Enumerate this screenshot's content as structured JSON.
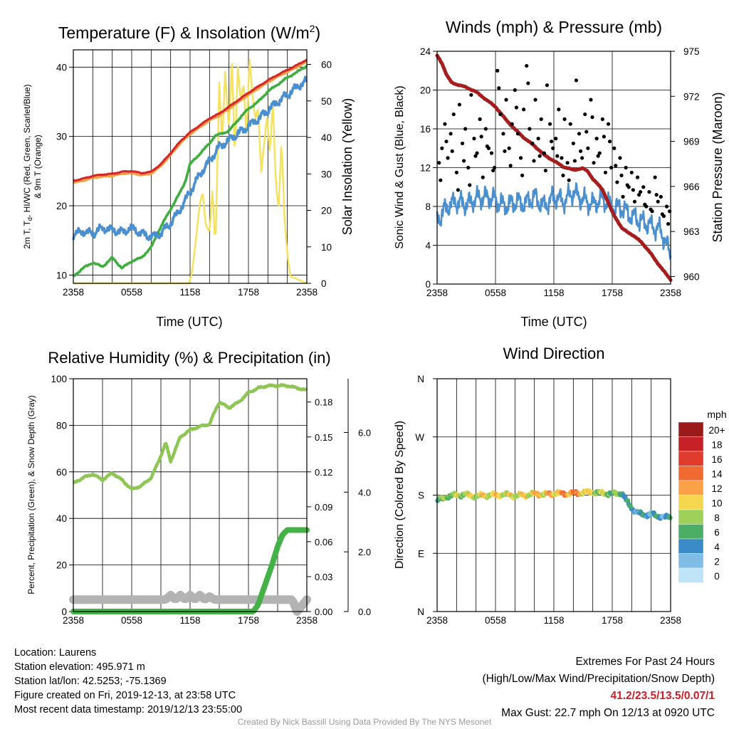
{
  "chart_data": [
    {
      "type": "line",
      "title": "Temperature (F) & Insolation (W/m²)",
      "title_main": "Temperature (F) & Insolation (W/m",
      "title_sup": "2",
      "title_end": ")",
      "xlabel": "Time (UTC)",
      "ylabel_line1": "2m T, T",
      "ylabel_sub": "d",
      "ylabel_line1_end": ", HI/WC (Red, Green, Scarlet/Blue)",
      "ylabel_line2": "& 9m T (Orange)",
      "ylabel_right": "Solar Insolation (Yellow)",
      "x_ticks": [
        "2358",
        "0558",
        "1158",
        "1758",
        "2358"
      ],
      "x_range_hours": [
        0,
        24
      ],
      "y_left_range": [
        8.8,
        42.5
      ],
      "y_left_ticks": [
        10,
        20,
        30,
        40
      ],
      "y_right_range": [
        0,
        64
      ],
      "y_right_ticks": [
        0,
        10,
        20,
        30,
        40,
        50,
        60
      ],
      "grid": true,
      "series": [
        {
          "name": "Red",
          "axis": "left",
          "color": "#d62728",
          "x": [
            0,
            1,
            2,
            3,
            4,
            5,
            6,
            7,
            8,
            9,
            10,
            11,
            12,
            13,
            14,
            15,
            16,
            17,
            18,
            19,
            20,
            21,
            22,
            23,
            24
          ],
          "y": [
            23.6,
            23.9,
            24.3,
            24.5,
            24.6,
            24.9,
            25.0,
            24.7,
            24.9,
            26.0,
            27.6,
            29.3,
            30.6,
            31.6,
            32.6,
            33.3,
            34.3,
            35.3,
            36.3,
            37.2,
            38.1,
            38.9,
            39.6,
            40.3,
            41.1
          ]
        },
        {
          "name": "Orange",
          "axis": "left",
          "color": "#f7a045",
          "x": [
            0,
            1,
            2,
            3,
            4,
            5,
            6,
            7,
            8,
            9,
            10,
            11,
            12,
            13,
            14,
            15,
            16,
            17,
            18,
            19,
            20,
            21,
            22,
            23,
            24
          ],
          "y": [
            23.3,
            23.6,
            24.0,
            24.2,
            24.3,
            24.6,
            24.7,
            24.4,
            24.6,
            25.7,
            27.3,
            29.0,
            30.3,
            31.3,
            32.3,
            33.0,
            34.0,
            35.0,
            36.0,
            36.9,
            37.8,
            38.6,
            39.3,
            40.0,
            40.8
          ]
        },
        {
          "name": "Green",
          "axis": "left",
          "color": "#3fae3f",
          "x": [
            0,
            1,
            2,
            3,
            4,
            5,
            6,
            7,
            8,
            9,
            10,
            11,
            11.5,
            12,
            13,
            14,
            14.5,
            15,
            16,
            17,
            18,
            19,
            20,
            21,
            22,
            23,
            24
          ],
          "y": [
            9.8,
            11.0,
            11.8,
            11.2,
            12.5,
            11.0,
            12.0,
            12.5,
            14.0,
            17.0,
            19.5,
            22.0,
            23.5,
            26.0,
            27.5,
            29.0,
            30.0,
            30.3,
            30.8,
            32.5,
            34.0,
            35.0,
            36.5,
            37.5,
            38.5,
            39.3,
            40.2
          ]
        },
        {
          "name": "Blue",
          "axis": "left",
          "color": "#4a8fcf",
          "x": [
            0,
            1,
            2,
            3,
            4,
            5,
            6,
            7,
            8,
            9,
            10,
            11,
            12,
            13,
            14,
            15,
            16,
            17,
            18,
            19,
            20,
            21,
            22,
            23,
            24
          ],
          "y": [
            15.8,
            16.3,
            16.0,
            16.8,
            16.5,
            16.2,
            16.8,
            16.0,
            15.5,
            16.0,
            17.5,
            19.5,
            22.0,
            24.5,
            26.5,
            28.5,
            29.5,
            30.5,
            31.5,
            32.5,
            33.8,
            35.0,
            36.0,
            37.2,
            38.0
          ]
        },
        {
          "name": "Yellow",
          "axis": "right",
          "color": "#f5e15b",
          "x": [
            0,
            11.9,
            12.2,
            12.6,
            13.0,
            13.3,
            13.6,
            14.0,
            14.3,
            14.6,
            15.0,
            15.3,
            15.6,
            16.0,
            16.3,
            16.6,
            16.9,
            17.2,
            17.5,
            17.8,
            18.1,
            18.4,
            18.7,
            19.0,
            19.3,
            19.6,
            19.9,
            20.2,
            20.5,
            20.8,
            21.1,
            21.4,
            21.7,
            22.0,
            22.3,
            24
          ],
          "y": [
            0,
            0,
            3,
            12,
            22,
            25,
            16,
            14,
            26,
            9,
            55,
            38,
            58,
            42,
            62,
            34,
            60,
            50,
            55,
            40,
            62,
            52,
            45,
            48,
            30,
            38,
            46,
            35,
            50,
            28,
            20,
            40,
            18,
            8,
            2,
            0
          ]
        }
      ]
    },
    {
      "type": "line",
      "title": "Winds (mph) & Pressure (mb)",
      "xlabel": "Time (UTC)",
      "ylabel": "Sonic Wind & Gust (Blue, Black)",
      "ylabel_right": "Station Pressure (Maroon)",
      "x_ticks": [
        "2358",
        "0558",
        "1158",
        "1758",
        "2358"
      ],
      "x_range_hours": [
        0,
        24
      ],
      "y_left_range": [
        0,
        24
      ],
      "y_left_ticks": [
        0,
        4,
        8,
        12,
        16,
        20,
        24
      ],
      "y_right_range": [
        959.5,
        975
      ],
      "y_right_ticks": [
        960,
        963,
        966,
        969,
        972,
        975
      ],
      "grid": true,
      "series": [
        {
          "name": "Blue",
          "axis": "left",
          "color": "#4a8fcf",
          "x": [
            0,
            1,
            2,
            3,
            4,
            5,
            6,
            7,
            8,
            9,
            10,
            11,
            12,
            13,
            14,
            15,
            16,
            17,
            18,
            19,
            20,
            21,
            22,
            23,
            24
          ],
          "y": [
            6.5,
            8.0,
            8.5,
            8.2,
            8.8,
            9.0,
            8.7,
            8.0,
            8.5,
            8.3,
            9.0,
            8.0,
            9.0,
            8.5,
            9.5,
            8.7,
            8.2,
            8.8,
            8.0,
            7.8,
            7.0,
            6.5,
            6.0,
            5.5,
            3.0
          ]
        },
        {
          "name": "Maroon",
          "axis": "right",
          "color": "#a51d1d",
          "x": [
            0,
            0.5,
            1,
            1.5,
            2,
            3,
            4,
            5,
            6,
            7,
            8,
            9,
            10,
            11,
            12,
            13,
            14,
            15,
            15.5,
            16,
            17,
            18,
            19,
            20,
            21,
            22,
            23,
            23.5,
            24
          ],
          "y": [
            974.7,
            974.2,
            973.4,
            972.9,
            972.8,
            972.6,
            972.3,
            971.8,
            971.3,
            970.5,
            969.8,
            969.2,
            968.7,
            968.1,
            967.7,
            967.3,
            967.1,
            967.2,
            967.0,
            966.5,
            965.8,
            964.3,
            963.2,
            962.8,
            962.3,
            961.5,
            960.6,
            960.2,
            959.8
          ]
        },
        {
          "name": "Black",
          "axis": "left",
          "color": "#000000",
          "type": "scatter",
          "x": [
            0.2,
            0.5,
            0.8,
            1.1,
            1.4,
            1.7,
            2.0,
            2.3,
            2.6,
            2.9,
            3.2,
            3.5,
            3.8,
            4.1,
            4.4,
            4.7,
            5.0,
            5.3,
            5.6,
            5.9,
            6.2,
            6.5,
            6.8,
            7.1,
            7.4,
            7.7,
            8.0,
            8.3,
            8.6,
            8.9,
            9.2,
            9.5,
            9.8,
            10.1,
            10.4,
            10.7,
            11.0,
            11.3,
            11.6,
            11.9,
            12.2,
            12.5,
            12.8,
            13.1,
            13.4,
            13.7,
            14.0,
            14.3,
            14.6,
            14.9,
            15.2,
            15.5,
            15.8,
            16.1,
            16.4,
            16.7,
            17.0,
            17.3,
            17.6,
            17.9,
            18.2,
            18.5,
            18.8,
            19.1,
            19.4,
            19.7,
            20.0,
            20.3,
            20.6,
            20.9,
            21.2,
            21.5,
            21.8,
            22.1,
            22.4,
            22.7,
            23.0,
            23.3,
            23.6,
            23.9
          ],
          "y": [
            12.5,
            14.0,
            16.5,
            13.0,
            15.5,
            17.5,
            11.5,
            18.5,
            14.5,
            16.0,
            12.0,
            19.5,
            15.0,
            13.5,
            17.0,
            11.0,
            16.0,
            14.0,
            13.5,
            12.0,
            22.0,
            17.5,
            15.5,
            19.0,
            14.0,
            16.5,
            20.0,
            15.5,
            13.0,
            18.0,
            22.5,
            16.0,
            14.5,
            19.0,
            15.0,
            17.0,
            13.5,
            20.5,
            16.5,
            14.0,
            15.0,
            18.0,
            13.0,
            17.0,
            12.5,
            16.5,
            14.5,
            21.0,
            15.5,
            13.0,
            17.5,
            14.0,
            19.0,
            12.5,
            15.0,
            13.5,
            17.0,
            11.5,
            16.5,
            12.0,
            14.0,
            10.5,
            13.0,
            9.0,
            12.0,
            10.0,
            11.5,
            8.5,
            11.0,
            9.5,
            10.0,
            8.0,
            9.5,
            7.5,
            11.0,
            8.5,
            9.0,
            7.0,
            8.0,
            7.5
          ]
        }
      ]
    },
    {
      "type": "line",
      "title": "Relative Humidity (%) & Precipitation (in)",
      "ylabel": "Percent, Precipitation (Green), & Snow Depth (Gray)",
      "x_ticks": [
        "2358",
        "0558",
        "1158",
        "1758",
        "2358"
      ],
      "x_range_hours": [
        0,
        24
      ],
      "y_left_range": [
        0,
        100
      ],
      "y_left_ticks": [
        0,
        20,
        40,
        60,
        80,
        100
      ],
      "y_precip_range": [
        0,
        0.2
      ],
      "y_precip_ticks": [
        "0.00",
        "0.03",
        "0.06",
        "0.09",
        "0.12",
        "0.15",
        "0.18"
      ],
      "y_snow_range": [
        0,
        7.8
      ],
      "y_snow_ticks": [
        "0.0",
        "2.0",
        "4.0",
        "6.0"
      ],
      "grid": true,
      "series": [
        {
          "name": "Green",
          "axis": "left",
          "color": "#8dc653",
          "x": [
            0,
            1,
            2,
            3,
            4,
            5,
            6,
            7,
            8,
            8.5,
            9,
            9.5,
            10,
            11,
            12,
            13,
            14,
            14.5,
            15,
            16,
            17,
            18,
            19,
            20,
            21,
            22,
            23,
            24
          ],
          "y": [
            55,
            57.5,
            59,
            56.5,
            59.5,
            56.5,
            52.5,
            54,
            57.5,
            62,
            67,
            72.5,
            64.5,
            75,
            78,
            79.5,
            80.5,
            85.5,
            90,
            87.5,
            90,
            94,
            96,
            97,
            97,
            97,
            96,
            95
          ]
        },
        {
          "name": "Precipitation",
          "axis": "precip",
          "color": "#44b246",
          "x": [
            0,
            18.5,
            19,
            19.5,
            20,
            20.5,
            21,
            21.5,
            22,
            22.5,
            24
          ],
          "y": [
            0,
            0,
            0.006,
            0.018,
            0.03,
            0.042,
            0.056,
            0.066,
            0.07,
            0.07,
            0.07
          ]
        },
        {
          "name": "Gray",
          "axis": "snow",
          "color": "#b3b3b3",
          "x": [
            0,
            9.5,
            10,
            10.5,
            11,
            11.5,
            12,
            12.5,
            13,
            13.5,
            14,
            14.5,
            22.5,
            23,
            24
          ],
          "y": [
            0.4,
            0.4,
            0.55,
            0.4,
            0.55,
            0.4,
            0.55,
            0.4,
            0.55,
            0.4,
            0.5,
            0.4,
            0.4,
            0.0,
            0.4
          ]
        }
      ]
    },
    {
      "type": "scatter",
      "title": "Wind Direction",
      "ylabel": "Direction (Colored By Speed)",
      "x_ticks": [
        "2358",
        "0558",
        "1158",
        "1758",
        "2358"
      ],
      "x_range_hours": [
        0,
        24
      ],
      "y_ticks": [
        "E",
        "S",
        "W",
        "N"
      ],
      "y_range_degrees": [
        0,
        360
      ],
      "grid": true,
      "direction_profile": {
        "x": [
          0,
          1,
          2,
          3,
          4,
          5,
          6,
          7,
          8,
          9,
          10,
          11,
          12,
          13,
          14,
          15,
          16,
          17,
          18,
          19,
          19.5,
          20,
          20.5,
          21,
          21.5,
          22,
          22.5,
          23,
          23.5,
          24
        ],
        "degrees": [
          171,
          178,
          180,
          181,
          178,
          180,
          180,
          181,
          179,
          180,
          182,
          181,
          183,
          182,
          183,
          184,
          185,
          183,
          182,
          183,
          170,
          160,
          154,
          150,
          149,
          152,
          147,
          148,
          145,
          146
        ]
      },
      "speed_profile": {
        "x": [
          0,
          2,
          4,
          6,
          8,
          10,
          12,
          13,
          14,
          15,
          16,
          17,
          18,
          19,
          20,
          22,
          24
        ],
        "mph": [
          6,
          8,
          9,
          10,
          9,
          10,
          11,
          12,
          13,
          11,
          9,
          8,
          7,
          6,
          4,
          4,
          4
        ]
      },
      "legend": {
        "title": "mph",
        "labels": [
          "20+",
          "18",
          "16",
          "14",
          "12",
          "10",
          "8",
          "6",
          "4",
          "2",
          "0"
        ],
        "colors": [
          "#9b1b1b",
          "#c62127",
          "#e13b2e",
          "#f06a32",
          "#fba248",
          "#f6d74f",
          "#9fd05a",
          "#4bae66",
          "#3a8bc8",
          "#7fbde6",
          "#bfe3f7"
        ]
      }
    }
  ],
  "info": {
    "location": "Location: Laurens",
    "elevation": "Station elevation: 495.971 m",
    "latlon": "Station lat/lon: 42.5253; -75.1369",
    "created": "Figure created on Fri, 2019-12-13, at 23:58 UTC",
    "recent": "Most recent data timestamp: 2019/12/13 23:55:00"
  },
  "extremes": {
    "title": "Extremes For Past 24 Hours",
    "subtitle": "(High/Low/Max Wind/Precipitation/Snow Depth)",
    "values": "41.2/23.5/13.5/0.07/1",
    "gust": "Max Gust: 22.7 mph On 12/13 at 0920 UTC"
  },
  "credit": "Created By Nick Bassill Using Data Provided By The NYS Mesonet"
}
